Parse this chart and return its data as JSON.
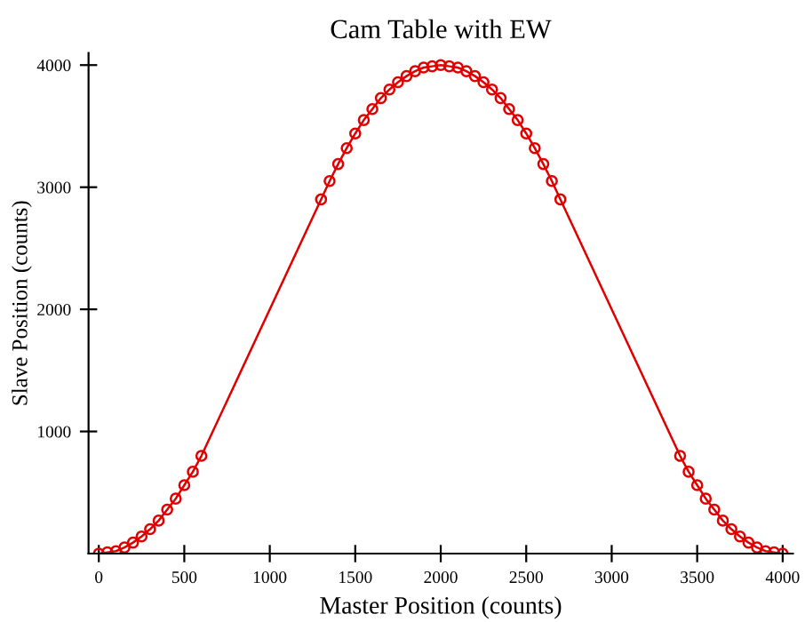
{
  "chart_data": {
    "type": "line",
    "title": "Cam Table with EW",
    "xlabel": "Master Position (counts)",
    "ylabel": "Slave Position (counts)",
    "series": [
      {
        "color": "#e00000",
        "x": [
          0,
          50,
          100,
          150,
          200,
          250,
          300,
          350,
          400,
          450,
          500,
          550,
          600,
          1300,
          1350,
          1400,
          1450,
          1500,
          1550,
          1600,
          1650,
          1700,
          1750,
          1800,
          1850,
          1900,
          1950,
          2000,
          2050,
          2100,
          2150,
          2200,
          2250,
          2300,
          2350,
          2400,
          2450,
          2500,
          2550,
          2600,
          2650,
          2700,
          3400,
          3450,
          3500,
          3550,
          3600,
          3650,
          3700,
          3750,
          3800,
          3850,
          3900,
          3950,
          4000
        ],
        "values": [
          0,
          10,
          20,
          50,
          90,
          140,
          200,
          270,
          360,
          450,
          560,
          670,
          800,
          2900,
          3050,
          3190,
          3320,
          3440,
          3550,
          3640,
          3730,
          3800,
          3860,
          3910,
          3950,
          3980,
          3990,
          4000,
          3990,
          3980,
          3950,
          3910,
          3860,
          3800,
          3730,
          3640,
          3550,
          3440,
          3320,
          3190,
          3050,
          2900,
          800,
          670,
          560,
          450,
          360,
          270,
          200,
          140,
          90,
          50,
          20,
          10,
          0
        ]
      }
    ],
    "xlim": [
      -60,
      4060
    ],
    "ylim": [
      0,
      4100
    ],
    "xticks": [
      0,
      500,
      1000,
      1500,
      2000,
      2500,
      3000,
      3500,
      4000
    ],
    "yticks": [
      1000,
      2000,
      3000,
      4000
    ],
    "marker": "circle",
    "line_style": "solid",
    "grid": false,
    "legend": false
  }
}
